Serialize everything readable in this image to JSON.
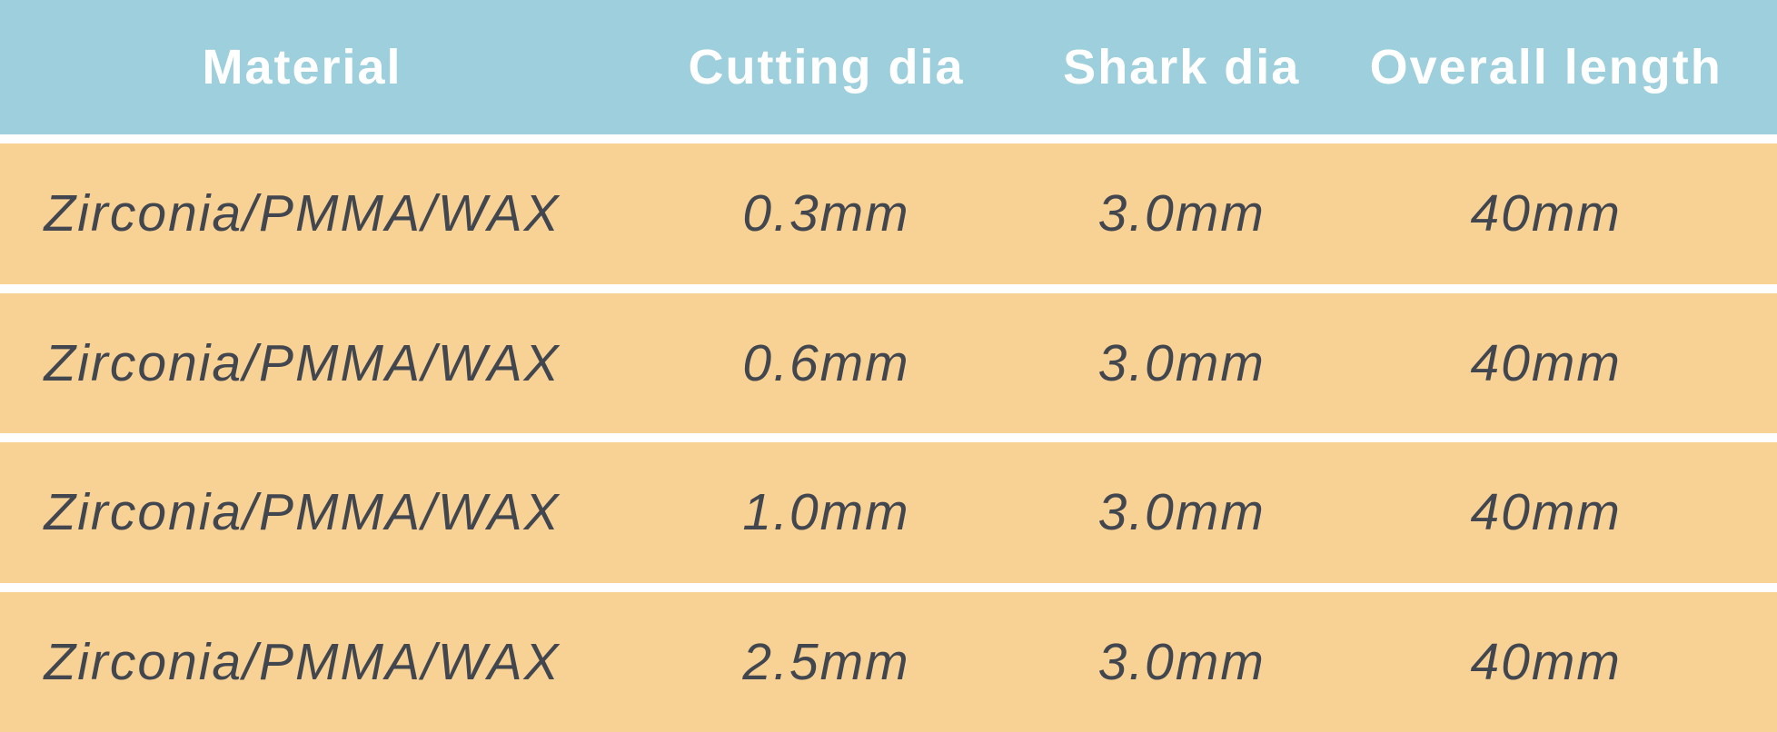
{
  "chart_data": {
    "type": "table",
    "title": "",
    "columns": [
      "Material",
      "Cutting dia",
      "Shark dia",
      "Overall length"
    ],
    "rows": [
      [
        "Zirconia/PMMA/WAX",
        "0.3mm",
        "3.0mm",
        "40mm"
      ],
      [
        "Zirconia/PMMA/WAX",
        "0.6mm",
        "3.0mm",
        "40mm"
      ],
      [
        "Zirconia/PMMA/WAX",
        "1.0mm",
        "3.0mm",
        "40mm"
      ],
      [
        "Zirconia/PMMA/WAX",
        "2.5mm",
        "3.0mm",
        "40mm"
      ]
    ]
  },
  "colors": {
    "header-bg": "#9ecfdc",
    "row-bg": "#f8d194",
    "header-text": "#ffffff",
    "row-text": "#42464e",
    "divider": "#ffffff"
  }
}
